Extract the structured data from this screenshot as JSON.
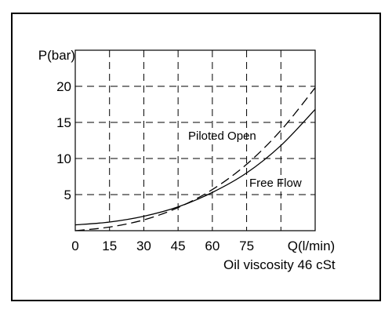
{
  "chart_data": {
    "type": "line",
    "ylabel": "P(bar)",
    "xlabel": "Q(l/min)",
    "note": "Oil viscosity 46 cSt",
    "x_ticks": [
      0,
      15,
      30,
      45,
      60,
      75
    ],
    "y_ticks": [
      5,
      10,
      15,
      20
    ],
    "xlim": [
      0,
      105
    ],
    "ylim": [
      0,
      25
    ],
    "grid": true,
    "grid_style": "dashed",
    "series": [
      {
        "name": "Free Flow",
        "style": "solid",
        "x": [
          0,
          15,
          30,
          45,
          60,
          75,
          90,
          105
        ],
        "y": [
          0.8,
          1.2,
          2.0,
          3.3,
          5.3,
          8.0,
          11.8,
          16.8
        ]
      },
      {
        "name": "Piloted Open",
        "style": "dashed",
        "x": [
          0,
          15,
          30,
          45,
          60,
          75,
          90,
          105
        ],
        "y": [
          0.0,
          0.5,
          1.5,
          3.2,
          5.7,
          9.2,
          13.9,
          19.8
        ]
      }
    ]
  }
}
